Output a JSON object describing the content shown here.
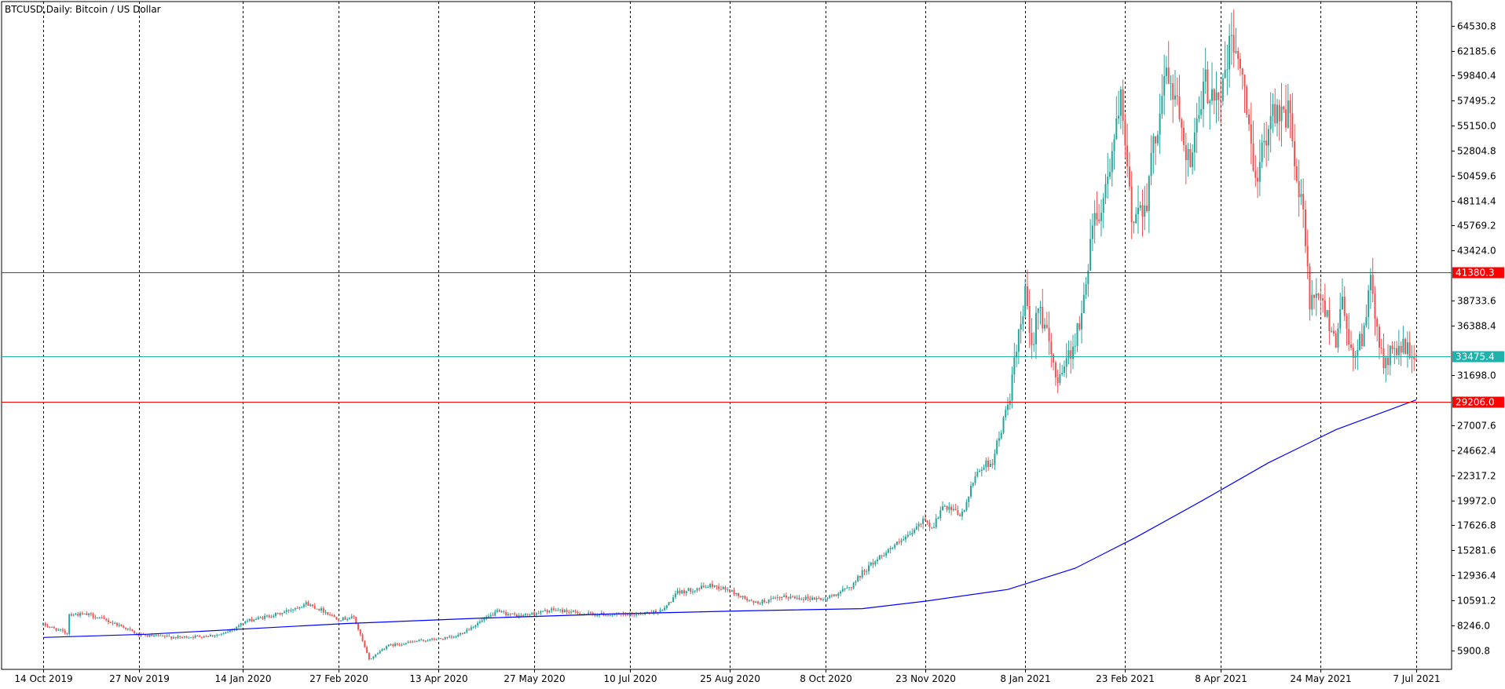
{
  "chart_data": {
    "type": "candlestick",
    "title": "BTCUSD,Daily:  Bitcoin / US Dollar",
    "price_range": [
      4100,
      66800
    ],
    "y_ticks": [
      5900.8,
      8246.0,
      10591.2,
      12936.4,
      15281.6,
      17626.8,
      19972.0,
      22317.2,
      24662.4,
      27007.6,
      31698.0,
      36388.4,
      38733.6,
      43424.0,
      45769.2,
      48114.4,
      50459.6,
      52804.8,
      55150.0,
      57495.2,
      59840.4,
      62185.6,
      64530.8
    ],
    "y_tick_labels": [
      "5900.8",
      "8246.0",
      "10591.2",
      "12936.4",
      "15281.6",
      "17626.8",
      "19972.0",
      "22317.2",
      "24662.4",
      "27007.6",
      "31698.0",
      "36388.4",
      "38733.6",
      "43424.0",
      "45769.2",
      "48114.4",
      "50459.6",
      "52804.8",
      "55150.0",
      "57495.2",
      "59840.4",
      "62185.6",
      "64530.8"
    ],
    "x_ticks": [
      "14 Oct 2019",
      "27 Nov 2019",
      "14 Jan 2020",
      "27 Feb 2020",
      "13 Apr 2020",
      "27 May 2020",
      "10 Jul 2020",
      "25 Aug 2020",
      "8 Oct 2020",
      "23 Nov 2020",
      "8 Jan 2021",
      "23 Feb 2021",
      "8 Apr 2021",
      "24 May 2021",
      "7 Jul 2021"
    ],
    "date_range": [
      "2019-10-14",
      "2021-07-07"
    ],
    "key_levels": [
      {
        "label": "41380.3",
        "value": 41380.3,
        "color": "#ff0000"
      },
      {
        "label": "33475.4",
        "value": 33475.4,
        "color": "#20b2aa"
      },
      {
        "label": "29206.0",
        "value": 29206.0,
        "color": "#ff0000"
      }
    ],
    "price_path": [
      [
        "2019-10-14",
        8300
      ],
      [
        "2019-10-25",
        7500
      ],
      [
        "2019-10-26",
        9300
      ],
      [
        "2019-11-05",
        9200
      ],
      [
        "2019-11-20",
        8100
      ],
      [
        "2019-11-27",
        7300
      ],
      [
        "2019-12-15",
        7100
      ],
      [
        "2019-12-25",
        7200
      ],
      [
        "2020-01-05",
        7400
      ],
      [
        "2020-01-15",
        8600
      ],
      [
        "2020-02-01",
        9400
      ],
      [
        "2020-02-12",
        10300
      ],
      [
        "2020-02-20",
        9600
      ],
      [
        "2020-02-27",
        8800
      ],
      [
        "2020-03-05",
        9000
      ],
      [
        "2020-03-12",
        5000
      ],
      [
        "2020-03-20",
        6300
      ],
      [
        "2020-04-05",
        6800
      ],
      [
        "2020-04-20",
        7100
      ],
      [
        "2020-05-05",
        8900
      ],
      [
        "2020-05-10",
        9500
      ],
      [
        "2020-05-20",
        9100
      ],
      [
        "2020-06-05",
        9700
      ],
      [
        "2020-06-20",
        9300
      ],
      [
        "2020-07-10",
        9200
      ],
      [
        "2020-07-25",
        9600
      ],
      [
        "2020-08-01",
        11300
      ],
      [
        "2020-08-17",
        12000
      ],
      [
        "2020-08-25",
        11500
      ],
      [
        "2020-09-05",
        10300
      ],
      [
        "2020-09-20",
        10900
      ],
      [
        "2020-10-08",
        10700
      ],
      [
        "2020-10-20",
        11900
      ],
      [
        "2020-10-25",
        13200
      ],
      [
        "2020-11-05",
        15200
      ],
      [
        "2020-11-15",
        16500
      ],
      [
        "2020-11-23",
        18300
      ],
      [
        "2020-11-26",
        17300
      ],
      [
        "2020-12-01",
        19300
      ],
      [
        "2020-12-10",
        18600
      ],
      [
        "2020-12-17",
        22800
      ],
      [
        "2020-12-24",
        23700
      ],
      [
        "2020-12-31",
        28900
      ],
      [
        "2021-01-03",
        32500
      ],
      [
        "2021-01-08",
        39000
      ],
      [
        "2021-01-11",
        34000
      ],
      [
        "2021-01-14",
        39000
      ],
      [
        "2021-01-22",
        31500
      ],
      [
        "2021-01-28",
        33500
      ],
      [
        "2021-02-03",
        37000
      ],
      [
        "2021-02-08",
        46500
      ],
      [
        "2021-02-12",
        47500
      ],
      [
        "2021-02-21",
        57000
      ],
      [
        "2021-02-26",
        46500
      ],
      [
        "2021-03-05",
        48500
      ],
      [
        "2021-03-13",
        60000
      ],
      [
        "2021-03-18",
        58000
      ],
      [
        "2021-03-25",
        51500
      ],
      [
        "2021-04-01",
        59000
      ],
      [
        "2021-04-08",
        58000
      ],
      [
        "2021-04-13",
        63000
      ],
      [
        "2021-04-16",
        62000
      ],
      [
        "2021-04-20",
        56000
      ],
      [
        "2021-04-25",
        50000
      ],
      [
        "2021-05-01",
        57000
      ],
      [
        "2021-05-10",
        56000
      ],
      [
        "2021-05-13",
        49500
      ],
      [
        "2021-05-16",
        46500
      ],
      [
        "2021-05-19",
        38500
      ],
      [
        "2021-05-25",
        38500
      ],
      [
        "2021-05-31",
        35000
      ],
      [
        "2021-06-03",
        39000
      ],
      [
        "2021-06-08",
        33000
      ],
      [
        "2021-06-12",
        35500
      ],
      [
        "2021-06-16",
        40000
      ],
      [
        "2021-06-22",
        32500
      ],
      [
        "2021-06-28",
        34500
      ],
      [
        "2021-07-07",
        33500
      ]
    ],
    "moving_average": [
      [
        "2019-10-14",
        7100
      ],
      [
        "2019-12-01",
        7400
      ],
      [
        "2020-01-20",
        7950
      ],
      [
        "2020-03-01",
        8400
      ],
      [
        "2020-05-01",
        8900
      ],
      [
        "2020-07-01",
        9300
      ],
      [
        "2020-09-01",
        9600
      ],
      [
        "2020-10-25",
        9800
      ],
      [
        "2020-11-23",
        10500
      ],
      [
        "2020-12-31",
        11600
      ],
      [
        "2021-01-31",
        13600
      ],
      [
        "2021-02-28",
        16500
      ],
      [
        "2021-03-31",
        20000
      ],
      [
        "2021-04-30",
        23500
      ],
      [
        "2021-05-31",
        26600
      ],
      [
        "2021-07-07",
        29400
      ]
    ]
  }
}
